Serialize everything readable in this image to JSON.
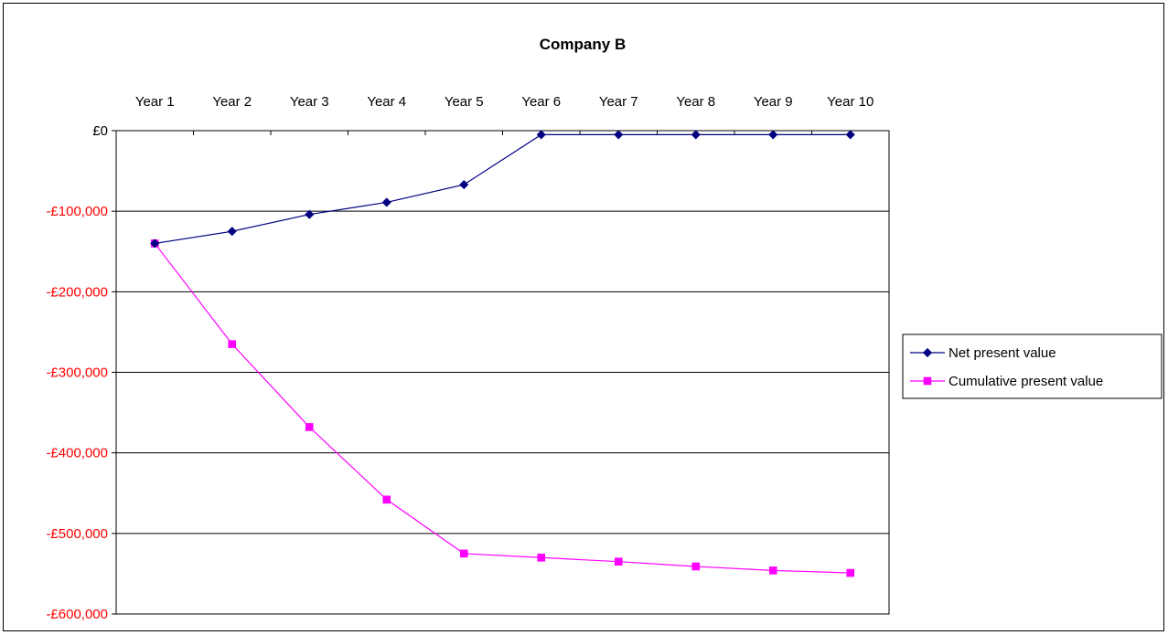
{
  "chart_data": {
    "type": "line",
    "title": "Company B",
    "xlabel": "",
    "ylabel": "",
    "categories": [
      "Year 1",
      "Year 2",
      "Year 3",
      "Year 4",
      "Year 5",
      "Year 6",
      "Year 7",
      "Year 8",
      "Year 9",
      "Year 10"
    ],
    "y_tick_labels": [
      "£0",
      "-£100,000",
      "-£200,000",
      "-£300,000",
      "-£400,000",
      "-£500,000",
      "-£600,000"
    ],
    "y_tick_values": [
      0,
      -100000,
      -200000,
      -300000,
      -400000,
      -500000,
      -600000
    ],
    "ylim": [
      -600000,
      0
    ],
    "grid": "horizontal",
    "x_axis_position": "top",
    "legend_position": "right",
    "series": [
      {
        "name": "Net present value",
        "color": "#000080",
        "marker": "diamond",
        "values": [
          -140000,
          -125000,
          -104000,
          -89000,
          -67000,
          -5000,
          -5000,
          -5000,
          -5000,
          -5000
        ]
      },
      {
        "name": "Cumulative present value",
        "color": "#ff00ff",
        "marker": "square",
        "values": [
          -140000,
          -265000,
          -368000,
          -458000,
          -525000,
          -530000,
          -535000,
          -541000,
          -546000,
          -549000
        ]
      }
    ],
    "colors": {
      "axis": "#000000",
      "gridline": "#000000",
      "negative_tick_label": "#ff0000",
      "zero_tick_label": "#000000"
    }
  }
}
